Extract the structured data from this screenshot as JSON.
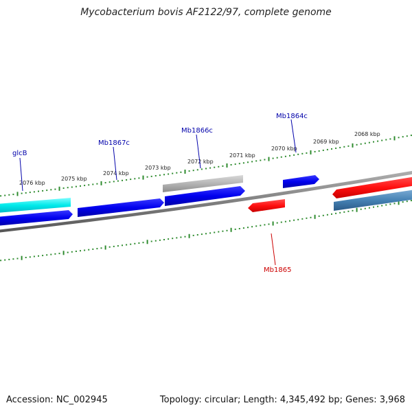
{
  "title": "Mycobacterium bovis AF2122/97, complete genome",
  "footer": {
    "accession": "Accession: NC_002945",
    "summary": "Topology: circular; Length: 4,345,492 bp; Genes: 3,968"
  },
  "ruler": {
    "color": "#2e8b2e",
    "labels": [
      "2076 kbp",
      "2075 kbp",
      "2074 kbp",
      "2073 kbp",
      "2072 kbp",
      "2071 kbp",
      "2070 kbp",
      "2069 kbp",
      "2068 kbp"
    ]
  },
  "genes": [
    {
      "name": "glcB",
      "strand": "forward",
      "color": "#00e0e0"
    },
    {
      "name": "Mb1867c",
      "strand": "reverse",
      "color": "#0000ee"
    },
    {
      "name": "Mb1866c",
      "strand": "reverse",
      "color": "#0000ee"
    },
    {
      "name": "Mb1865",
      "strand": "forward",
      "color": "#ff1010"
    },
    {
      "name": "Mb1864c",
      "strand": "reverse",
      "color": "#0000ee"
    }
  ],
  "colors": {
    "backbone": "#808080",
    "gray_feature": "#b0b0b0",
    "steelblue_feature": "#4682b4",
    "blue_label": "#0000aa",
    "red_label": "#cc0000"
  }
}
